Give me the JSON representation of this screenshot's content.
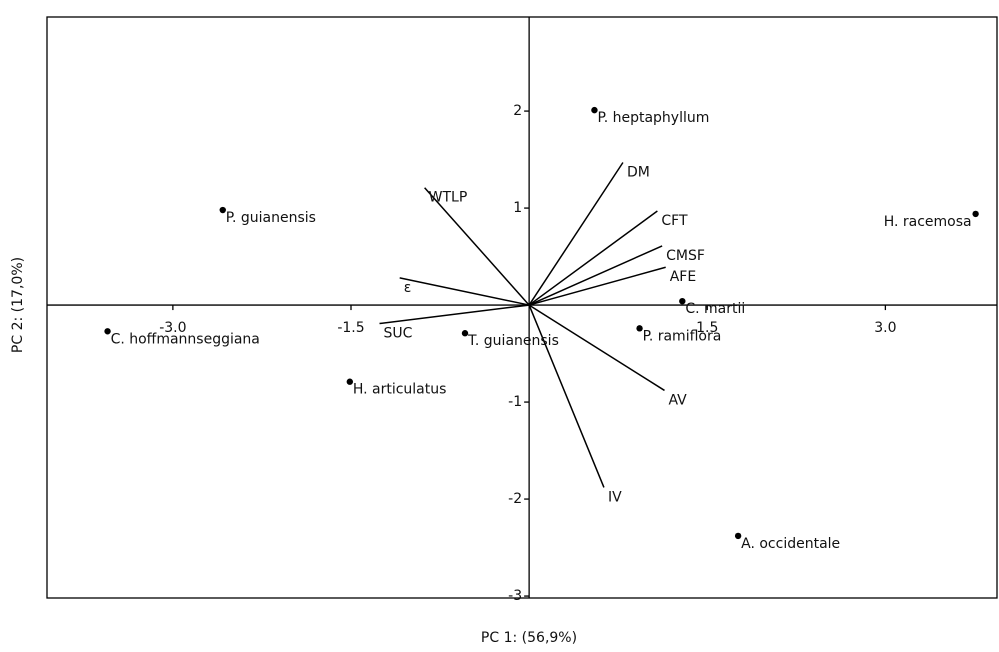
{
  "chart_data": {
    "type": "scatter",
    "x_label": "PC 1: (56,9%)",
    "y_label": "PC 2: (17,0%)",
    "xlim": [
      -4.06,
      3.94
    ],
    "ylim": [
      -3.02,
      2.97
    ],
    "xticks": [
      {
        "value": -3,
        "label": "-3.0"
      },
      {
        "value": -1.5,
        "label": "-1.5"
      },
      {
        "value": 1.5,
        "label": "1.5"
      },
      {
        "value": 3,
        "label": "3.0"
      }
    ],
    "yticks": [
      2,
      1,
      -1,
      -2,
      -3
    ],
    "color": "#000000",
    "points": {
      "labels": [
        "P. heptaphyllum",
        "P. guianensis",
        "H. racemosa",
        "C. hoffmannseggiana",
        "T. guianensis",
        "H. articulatus",
        "C. martii",
        "P. ramiflora",
        "A. occidentale"
      ],
      "x": [
        0.55,
        -2.58,
        3.76,
        -3.55,
        -0.54,
        -1.51,
        1.29,
        0.93,
        1.76
      ],
      "y": [
        2.01,
        0.98,
        0.94,
        -0.27,
        -0.29,
        -0.79,
        0.04,
        -0.24,
        -2.38
      ]
    },
    "loadings": {
      "labels": [
        "WTLP",
        "DM",
        "CFT",
        "CMSF",
        "AFE",
        "ε",
        "SUC",
        "AV",
        "IV"
      ],
      "x": [
        -0.88,
        0.79,
        1.08,
        1.12,
        1.15,
        -1.09,
        -1.26,
        1.14,
        0.63
      ],
      "y": [
        1.21,
        1.47,
        0.97,
        0.61,
        0.39,
        0.28,
        -0.19,
        -0.88,
        -1.88
      ]
    }
  }
}
